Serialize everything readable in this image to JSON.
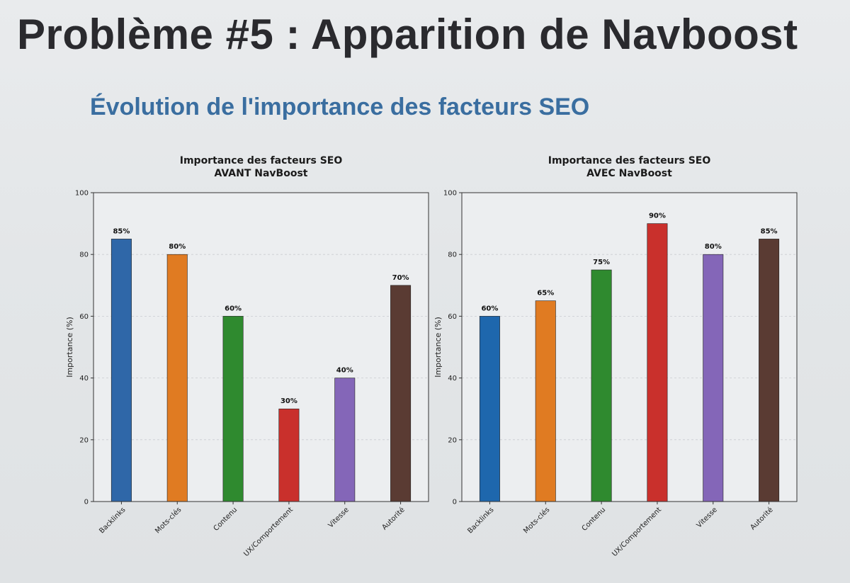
{
  "slide": {
    "title": "Problème #5 : Apparition de Navboost",
    "subtitle": "Évolution de l'importance des facteurs SEO"
  },
  "chart_data": [
    {
      "type": "bar",
      "title": "Importance des facteurs SEO\nAVANT NavBoost",
      "xlabel": "",
      "ylabel": "Importance (%)",
      "ylim": [
        0,
        100
      ],
      "yticks": [
        0,
        20,
        40,
        60,
        80,
        100
      ],
      "grid": true,
      "categories": [
        "Backlinks",
        "Mots-clés",
        "Contenu",
        "UX/Comportement",
        "Vitesse",
        "Autorité"
      ],
      "values": [
        85,
        80,
        60,
        30,
        40,
        70
      ],
      "value_labels": [
        "85%",
        "80%",
        "60%",
        "30%",
        "40%",
        "70%"
      ],
      "colors": [
        "#2f67a8",
        "#e07b22",
        "#2f8a2f",
        "#c9302c",
        "#8466b8",
        "#5a3b33"
      ]
    },
    {
      "type": "bar",
      "title": "Importance des facteurs SEO\nAVEC NavBoost",
      "xlabel": "",
      "ylabel": "Importance (%)",
      "ylim": [
        0,
        100
      ],
      "yticks": [
        0,
        20,
        40,
        60,
        80,
        100
      ],
      "grid": true,
      "categories": [
        "Backlinks",
        "Mots-clés",
        "Contenu",
        "UX/Comportement",
        "Vitesse",
        "Autorité"
      ],
      "values": [
        60,
        65,
        75,
        90,
        80,
        85
      ],
      "value_labels": [
        "60%",
        "65%",
        "75%",
        "90%",
        "80%",
        "85%"
      ],
      "colors": [
        "#1e67ad",
        "#e07b22",
        "#2f8a2f",
        "#c9302c",
        "#8466b8",
        "#5a3b33"
      ]
    }
  ]
}
